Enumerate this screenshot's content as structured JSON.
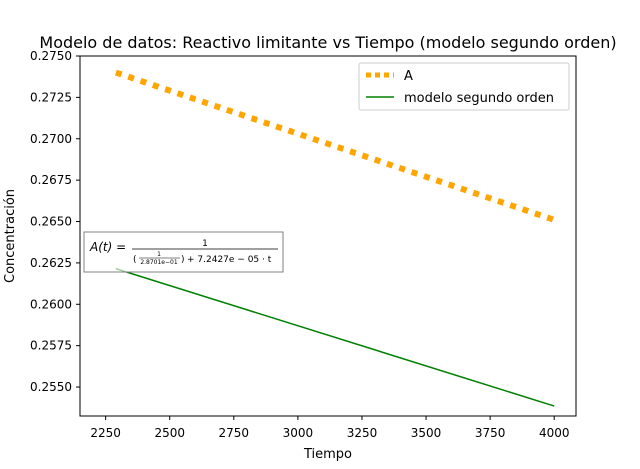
{
  "chart_data": {
    "type": "line",
    "title": "Modelo de datos: Reactivo limitante vs Tiempo (modelo segundo orden)",
    "xlabel": "Tiempo",
    "ylabel": "Concentración",
    "xlim": [
      2150,
      4085
    ],
    "ylim": [
      0.25325,
      0.275
    ],
    "xticks": [
      2250,
      2500,
      2750,
      3000,
      3250,
      3500,
      3750,
      4000
    ],
    "yticks": [
      0.255,
      0.2575,
      0.26,
      0.2625,
      0.265,
      0.2675,
      0.27,
      0.2725,
      0.275
    ],
    "ytick_labels": [
      "0.2550",
      "0.2575",
      "0.2600",
      "0.2625",
      "0.2650",
      "0.2675",
      "0.2700",
      "0.2725",
      "0.2750"
    ],
    "grid": false,
    "legend_position": "top-right",
    "series": [
      {
        "name": "A",
        "style": "dotted",
        "color": "#ffa500",
        "x": [
          2290,
          4000
        ],
        "y": [
          0.274,
          0.2651
        ]
      },
      {
        "name": "modelo segundo orden",
        "style": "solid",
        "color": "#008000",
        "x": [
          2290,
          4000
        ],
        "y": [
          0.26215,
          0.25385
        ]
      }
    ],
    "annotation": {
      "lhs": "A(t) =",
      "numerator": "1",
      "inner_numerator": "1",
      "inner_denominator": "2.8701e−01",
      "tail": "+ 7.2427e − 05 · t"
    }
  }
}
